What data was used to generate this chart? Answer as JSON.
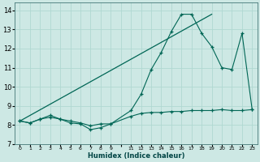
{
  "xlabel": "Humidex (Indice chaleur)",
  "bg_color": "#cde8e4",
  "grid_color": "#b0d8d2",
  "line_color": "#006655",
  "xlim": [
    -0.5,
    23.5
  ],
  "ylim": [
    7.0,
    14.4
  ],
  "yticks": [
    7,
    8,
    9,
    10,
    11,
    12,
    13,
    14
  ],
  "xticks_pos": [
    0,
    1,
    2,
    3,
    4,
    5,
    6,
    7,
    8,
    9,
    10,
    11,
    12,
    13,
    14,
    15,
    16,
    17,
    18,
    19,
    20,
    21,
    22,
    23
  ],
  "xticks_labels": [
    "0",
    "1",
    "2",
    "3",
    "4",
    "5",
    "6",
    "7",
    "8",
    "9",
    "",
    "11",
    "12",
    "13",
    "14",
    "15",
    "16",
    "17",
    "18",
    "19",
    "20",
    "21",
    "22",
    "23"
  ],
  "series1_x": [
    0,
    1,
    2,
    3,
    4,
    5,
    6,
    7,
    8,
    9,
    11,
    12,
    13,
    14,
    15,
    16,
    17,
    18,
    19,
    20,
    21,
    22,
    23
  ],
  "series1_y": [
    8.2,
    8.1,
    8.3,
    8.4,
    8.3,
    8.1,
    8.05,
    7.75,
    7.85,
    8.05,
    8.45,
    8.6,
    8.65,
    8.65,
    8.7,
    8.7,
    8.75,
    8.75,
    8.75,
    8.8,
    8.75,
    8.75,
    8.8
  ],
  "series2_x": [
    0,
    1,
    2,
    3,
    4,
    5,
    6,
    7,
    8,
    9,
    11,
    12,
    13,
    14,
    15,
    16,
    17,
    18,
    19,
    20,
    21,
    22,
    23
  ],
  "series2_y": [
    8.2,
    8.1,
    8.3,
    8.5,
    8.3,
    8.2,
    8.1,
    7.95,
    8.05,
    8.05,
    8.75,
    9.6,
    10.9,
    11.8,
    12.9,
    13.8,
    13.8,
    12.8,
    12.1,
    11.0,
    10.9,
    12.8,
    8.8
  ],
  "series3_x": [
    0,
    19
  ],
  "series3_y": [
    8.2,
    13.8
  ],
  "figsize": [
    3.2,
    2.0
  ],
  "dpi": 100
}
